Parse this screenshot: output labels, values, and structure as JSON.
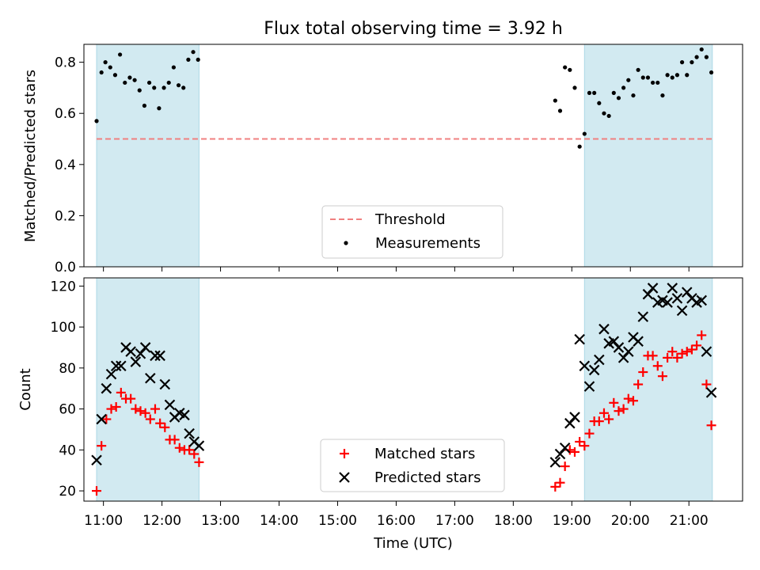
{
  "figure": {
    "title": "Flux total observing time = 3.92 h",
    "xlabel": "Time (UTC)",
    "xticks": [
      "11:00",
      "12:00",
      "13:00",
      "14:00",
      "15:00",
      "16:00",
      "17:00",
      "18:00",
      "19:00",
      "20:00",
      "21:00"
    ],
    "colors": {
      "shade": "#add8e6",
      "threshold": "#f08080",
      "matched": "#ff0000",
      "predicted": "#000000",
      "measurements": "#000000"
    }
  },
  "chart_data": [
    {
      "type": "scatter",
      "ylabel": "Matched/Predicted stars",
      "ylim": [
        0,
        0.87
      ],
      "yticks": [
        "0.0",
        "0.2",
        "0.4",
        "0.6",
        "0.8"
      ],
      "xlim": [
        "10:40",
        "21:55"
      ],
      "shaded_regions": [
        [
          "10:53",
          "12:38"
        ],
        [
          "19:13",
          "21:24"
        ]
      ],
      "threshold": 0.5,
      "legend": {
        "position": "lower center",
        "entries": [
          "Threshold",
          "Measurements"
        ]
      },
      "series": [
        {
          "name": "Measurements",
          "points": [
            [
              "10:53",
              0.57
            ],
            [
              "10:58",
              0.76
            ],
            [
              "11:02",
              0.8
            ],
            [
              "11:07",
              0.78
            ],
            [
              "11:12",
              0.75
            ],
            [
              "11:17",
              0.83
            ],
            [
              "11:22",
              0.72
            ],
            [
              "11:27",
              0.74
            ],
            [
              "11:32",
              0.73
            ],
            [
              "11:37",
              0.69
            ],
            [
              "11:42",
              0.63
            ],
            [
              "11:47",
              0.72
            ],
            [
              "11:52",
              0.7
            ],
            [
              "11:57",
              0.62
            ],
            [
              "12:02",
              0.7
            ],
            [
              "12:07",
              0.72
            ],
            [
              "12:12",
              0.78
            ],
            [
              "12:17",
              0.71
            ],
            [
              "12:22",
              0.7
            ],
            [
              "12:27",
              0.81
            ],
            [
              "12:32",
              0.84
            ],
            [
              "12:37",
              0.81
            ],
            [
              "18:43",
              0.65
            ],
            [
              "18:48",
              0.61
            ],
            [
              "18:53",
              0.78
            ],
            [
              "18:58",
              0.77
            ],
            [
              "19:03",
              0.7
            ],
            [
              "19:08",
              0.47
            ],
            [
              "19:13",
              0.52
            ],
            [
              "19:18",
              0.68
            ],
            [
              "19:23",
              0.68
            ],
            [
              "19:28",
              0.64
            ],
            [
              "19:33",
              0.6
            ],
            [
              "19:38",
              0.59
            ],
            [
              "19:43",
              0.68
            ],
            [
              "19:48",
              0.66
            ],
            [
              "19:53",
              0.7
            ],
            [
              "19:58",
              0.73
            ],
            [
              "20:03",
              0.67
            ],
            [
              "20:08",
              0.77
            ],
            [
              "20:13",
              0.74
            ],
            [
              "20:18",
              0.74
            ],
            [
              "20:23",
              0.72
            ],
            [
              "20:28",
              0.72
            ],
            [
              "20:33",
              0.67
            ],
            [
              "20:38",
              0.75
            ],
            [
              "20:43",
              0.74
            ],
            [
              "20:48",
              0.75
            ],
            [
              "20:53",
              0.8
            ],
            [
              "20:58",
              0.75
            ],
            [
              "21:03",
              0.8
            ],
            [
              "21:08",
              0.82
            ],
            [
              "21:13",
              0.85
            ],
            [
              "21:18",
              0.82
            ],
            [
              "21:23",
              0.76
            ]
          ]
        }
      ]
    },
    {
      "type": "scatter",
      "ylabel": "Count",
      "ylim": [
        15,
        124
      ],
      "yticks": [
        "20",
        "40",
        "60",
        "80",
        "100",
        "120"
      ],
      "xlim": [
        "10:40",
        "21:55"
      ],
      "shaded_regions": [
        [
          "10:53",
          "12:38"
        ],
        [
          "19:13",
          "21:24"
        ]
      ],
      "legend": {
        "position": "lower center",
        "entries": [
          "Matched stars",
          "Predicted stars"
        ]
      },
      "series": [
        {
          "name": "Matched stars",
          "marker": "+",
          "points": [
            [
              "10:53",
              20
            ],
            [
              "10:58",
              42
            ],
            [
              "11:03",
              55
            ],
            [
              "11:08",
              60
            ],
            [
              "11:13",
              61
            ],
            [
              "11:18",
              68
            ],
            [
              "11:23",
              65
            ],
            [
              "11:28",
              65
            ],
            [
              "11:33",
              60
            ],
            [
              "11:38",
              59
            ],
            [
              "11:43",
              58
            ],
            [
              "11:48",
              55
            ],
            [
              "11:53",
              60
            ],
            [
              "11:58",
              53
            ],
            [
              "12:03",
              51
            ],
            [
              "12:08",
              45
            ],
            [
              "12:13",
              45
            ],
            [
              "12:18",
              41
            ],
            [
              "12:23",
              40
            ],
            [
              "12:28",
              40
            ],
            [
              "12:33",
              38
            ],
            [
              "12:38",
              34
            ],
            [
              "18:43",
              22
            ],
            [
              "18:48",
              24
            ],
            [
              "18:53",
              32
            ],
            [
              "18:58",
              40
            ],
            [
              "19:03",
              39
            ],
            [
              "19:08",
              44
            ],
            [
              "19:13",
              42
            ],
            [
              "19:18",
              48
            ],
            [
              "19:23",
              54
            ],
            [
              "19:28",
              54
            ],
            [
              "19:33",
              58
            ],
            [
              "19:38",
              55
            ],
            [
              "19:43",
              63
            ],
            [
              "19:48",
              59
            ],
            [
              "19:53",
              60
            ],
            [
              "19:58",
              65
            ],
            [
              "20:03",
              64
            ],
            [
              "20:08",
              72
            ],
            [
              "20:13",
              78
            ],
            [
              "20:18",
              86
            ],
            [
              "20:23",
              86
            ],
            [
              "20:28",
              81
            ],
            [
              "20:33",
              76
            ],
            [
              "20:38",
              85
            ],
            [
              "20:43",
              88
            ],
            [
              "20:48",
              85
            ],
            [
              "20:53",
              87
            ],
            [
              "20:58",
              88
            ],
            [
              "21:03",
              89
            ],
            [
              "21:08",
              91
            ],
            [
              "21:13",
              96
            ],
            [
              "21:18",
              72
            ],
            [
              "21:23",
              52
            ]
          ]
        },
        {
          "name": "Predicted stars",
          "marker": "x",
          "points": [
            [
              "10:53",
              35
            ],
            [
              "10:58",
              55
            ],
            [
              "11:03",
              70
            ],
            [
              "11:08",
              77
            ],
            [
              "11:13",
              81
            ],
            [
              "11:18",
              81
            ],
            [
              "11:23",
              90
            ],
            [
              "11:28",
              88
            ],
            [
              "11:33",
              83
            ],
            [
              "11:38",
              87
            ],
            [
              "11:43",
              90
            ],
            [
              "11:48",
              75
            ],
            [
              "11:53",
              86
            ],
            [
              "11:58",
              86
            ],
            [
              "12:03",
              72
            ],
            [
              "12:08",
              62
            ],
            [
              "12:13",
              56
            ],
            [
              "12:18",
              58
            ],
            [
              "12:23",
              57
            ],
            [
              "12:28",
              48
            ],
            [
              "12:33",
              44
            ],
            [
              "12:38",
              42
            ],
            [
              "18:43",
              34
            ],
            [
              "18:48",
              38
            ],
            [
              "18:53",
              41
            ],
            [
              "18:58",
              53
            ],
            [
              "19:03",
              56
            ],
            [
              "19:08",
              94
            ],
            [
              "19:13",
              81
            ],
            [
              "19:18",
              71
            ],
            [
              "19:23",
              79
            ],
            [
              "19:28",
              84
            ],
            [
              "19:33",
              99
            ],
            [
              "19:38",
              92
            ],
            [
              "19:43",
              93
            ],
            [
              "19:48",
              90
            ],
            [
              "19:53",
              85
            ],
            [
              "19:58",
              88
            ],
            [
              "20:03",
              95
            ],
            [
              "20:08",
              93
            ],
            [
              "20:13",
              105
            ],
            [
              "20:18",
              116
            ],
            [
              "20:23",
              119
            ],
            [
              "20:28",
              112
            ],
            [
              "20:33",
              113
            ],
            [
              "20:38",
              112
            ],
            [
              "20:43",
              119
            ],
            [
              "20:48",
              114
            ],
            [
              "20:53",
              108
            ],
            [
              "20:58",
              117
            ],
            [
              "21:03",
              114
            ],
            [
              "21:08",
              112
            ],
            [
              "21:13",
              113
            ],
            [
              "21:18",
              88
            ],
            [
              "21:23",
              68
            ]
          ]
        }
      ]
    }
  ]
}
